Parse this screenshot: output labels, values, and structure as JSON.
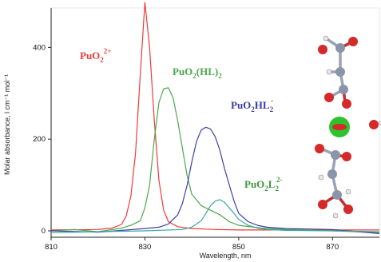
{
  "chart_data": {
    "type": "line",
    "xlabel": "Wavelength, nm",
    "ylabel": "Molar absorbance, l cm⁻¹ mol⁻¹",
    "xlim": [
      810,
      880
    ],
    "ylim": [
      0,
      500
    ],
    "x_ticks": [
      "810",
      "830",
      "850",
      "870"
    ],
    "y_ticks": [
      "0",
      "200",
      "400"
    ],
    "grid": false,
    "series": [
      {
        "name": "PuO₂²⁺",
        "color": "#ee3a3a",
        "x": [
          810,
          820,
          823,
          825,
          826,
          827,
          828,
          829,
          830,
          831,
          832,
          833,
          834,
          835,
          837,
          840,
          845,
          850,
          860,
          880
        ],
        "y": [
          2,
          3,
          6,
          14,
          32,
          75,
          170,
          340,
          498,
          400,
          240,
          110,
          45,
          20,
          9,
          5,
          3,
          2,
          2,
          2
        ]
      },
      {
        "name": "PuO₂(HL)₂",
        "color": "#4aa84a",
        "x": [
          810,
          815,
          820,
          825,
          827,
          829,
          830,
          831,
          832,
          833,
          834,
          835,
          836,
          837,
          838,
          839,
          840,
          842,
          844,
          846,
          848,
          850,
          855,
          860,
          870,
          880
        ],
        "y": [
          0,
          3,
          -2,
          6,
          12,
          22,
          50,
          100,
          200,
          280,
          310,
          312,
          290,
          240,
          180,
          120,
          80,
          55,
          45,
          35,
          20,
          12,
          6,
          3,
          0,
          -4
        ]
      },
      {
        "name": "PuO₂HL₂⁻",
        "color": "#4040a8",
        "x": [
          810,
          820,
          830,
          833,
          835,
          837,
          838,
          839,
          840,
          841,
          842,
          843,
          844,
          845,
          846,
          847,
          848,
          849,
          850,
          852,
          854,
          856,
          860,
          870,
          880
        ],
        "y": [
          0,
          -3,
          5,
          8,
          15,
          35,
          60,
          100,
          150,
          195,
          220,
          226,
          222,
          205,
          175,
          135,
          100,
          65,
          38,
          20,
          12,
          8,
          5,
          3,
          -6
        ]
      },
      {
        "name": "PuO₂L₂²⁻",
        "color": "#3aa8a0",
        "x": [
          810,
          820,
          830,
          838,
          840,
          842,
          843,
          844,
          845,
          846,
          847,
          848,
          849,
          850,
          852,
          854,
          856,
          860,
          870,
          880
        ],
        "y": [
          -4,
          -2,
          0,
          3,
          8,
          22,
          38,
          55,
          65,
          68,
          62,
          50,
          38,
          25,
          12,
          6,
          3,
          1,
          0,
          -2
        ]
      }
    ]
  },
  "labels": {
    "s1": {
      "base": "PuO",
      "sub1": "2",
      "sup": "2+"
    },
    "s2": {
      "base": "PuO",
      "sub1": "2",
      "mid": "(HL)",
      "sub2": "2"
    },
    "s3": {
      "base": "PuO",
      "sub1": "2",
      "mid": "HL",
      "sub2": "2",
      "sup": "-"
    },
    "s4": {
      "base": "PuO",
      "sub1": "2",
      "mid": "L",
      "sub2": "2",
      "sup": "2-"
    }
  }
}
